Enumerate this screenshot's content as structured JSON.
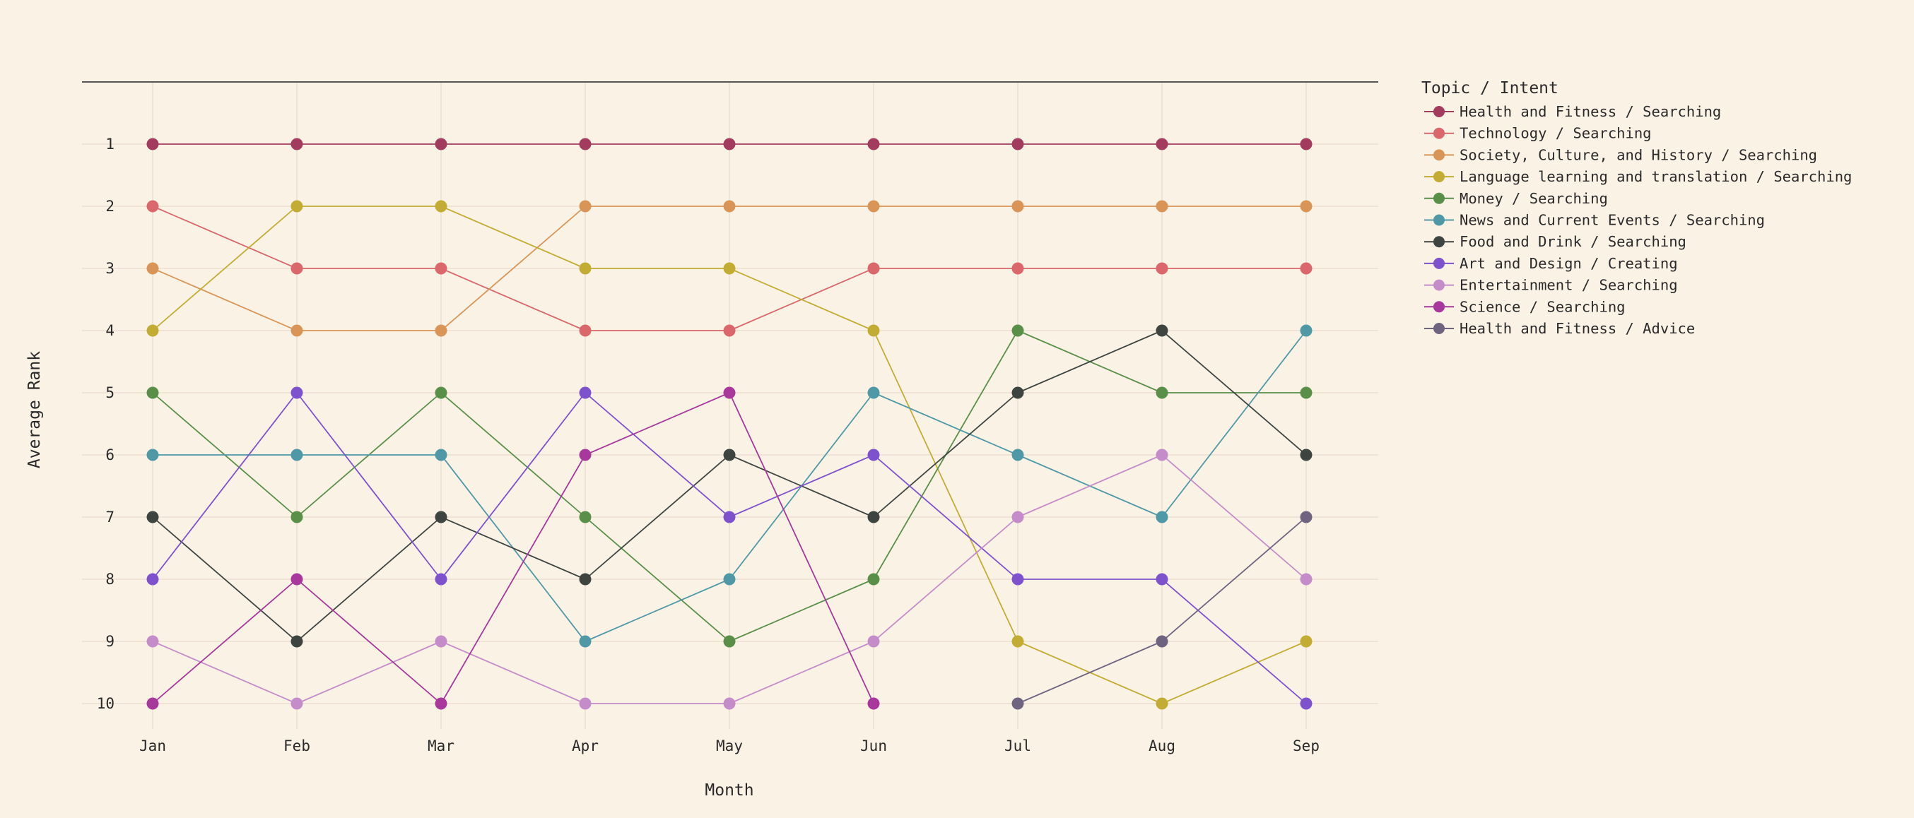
{
  "chart_data": {
    "type": "line",
    "title": "",
    "xlabel": "Month",
    "ylabel": "Average Rank",
    "x": [
      "Jan",
      "Feb",
      "Mar",
      "Apr",
      "May",
      "Jun",
      "Jul",
      "Aug",
      "Sep"
    ],
    "y_ticks": [
      "1",
      "2",
      "3",
      "4",
      "5",
      "6",
      "7",
      "8",
      "9",
      "10"
    ],
    "ylim": [
      10,
      1
    ],
    "y_reversed": true,
    "grid": true,
    "legend_position": "right",
    "legend_title": "Topic / Intent",
    "series": [
      {
        "name": "Health and Fitness / Searching",
        "color": "#a23b5e",
        "values": [
          1,
          1,
          1,
          1,
          1,
          1,
          1,
          1,
          1
        ]
      },
      {
        "name": "Technology / Searching",
        "color": "#d9676b",
        "values": [
          2,
          3,
          3,
          4,
          4,
          3,
          3,
          3,
          3
        ]
      },
      {
        "name": "Society, Culture, and History / Searching",
        "color": "#d99558",
        "values": [
          3,
          4,
          4,
          2,
          2,
          2,
          2,
          2,
          2
        ]
      },
      {
        "name": "Language learning and translation / Searching",
        "color": "#c2ac34",
        "values": [
          4,
          2,
          2,
          3,
          3,
          4,
          9,
          10,
          9
        ]
      },
      {
        "name": "Money / Searching",
        "color": "#5a8f4a",
        "values": [
          5,
          7,
          5,
          7,
          9,
          8,
          4,
          5,
          5
        ]
      },
      {
        "name": "News and Current Events / Searching",
        "color": "#4f98a6",
        "values": [
          6,
          6,
          6,
          9,
          8,
          5,
          6,
          7,
          4
        ]
      },
      {
        "name": "Food and Drink / Searching",
        "color": "#3e4540",
        "values": [
          7,
          9,
          7,
          8,
          6,
          7,
          5,
          4,
          6
        ]
      },
      {
        "name": "Art and Design / Creating",
        "color": "#7d52cc",
        "values": [
          8,
          5,
          8,
          5,
          7,
          6,
          8,
          8,
          10
        ]
      },
      {
        "name": "Entertainment / Searching",
        "color": "#c48cc8",
        "values": [
          9,
          10,
          9,
          10,
          10,
          9,
          7,
          6,
          8
        ]
      },
      {
        "name": "Science / Searching",
        "color": "#a8389b",
        "values": [
          10,
          8,
          10,
          6,
          5,
          10,
          null,
          null,
          null
        ]
      },
      {
        "name": "Health and Fitness / Advice",
        "color": "#6e6480",
        "values": [
          null,
          null,
          null,
          null,
          null,
          null,
          10,
          9,
          7
        ]
      }
    ]
  }
}
